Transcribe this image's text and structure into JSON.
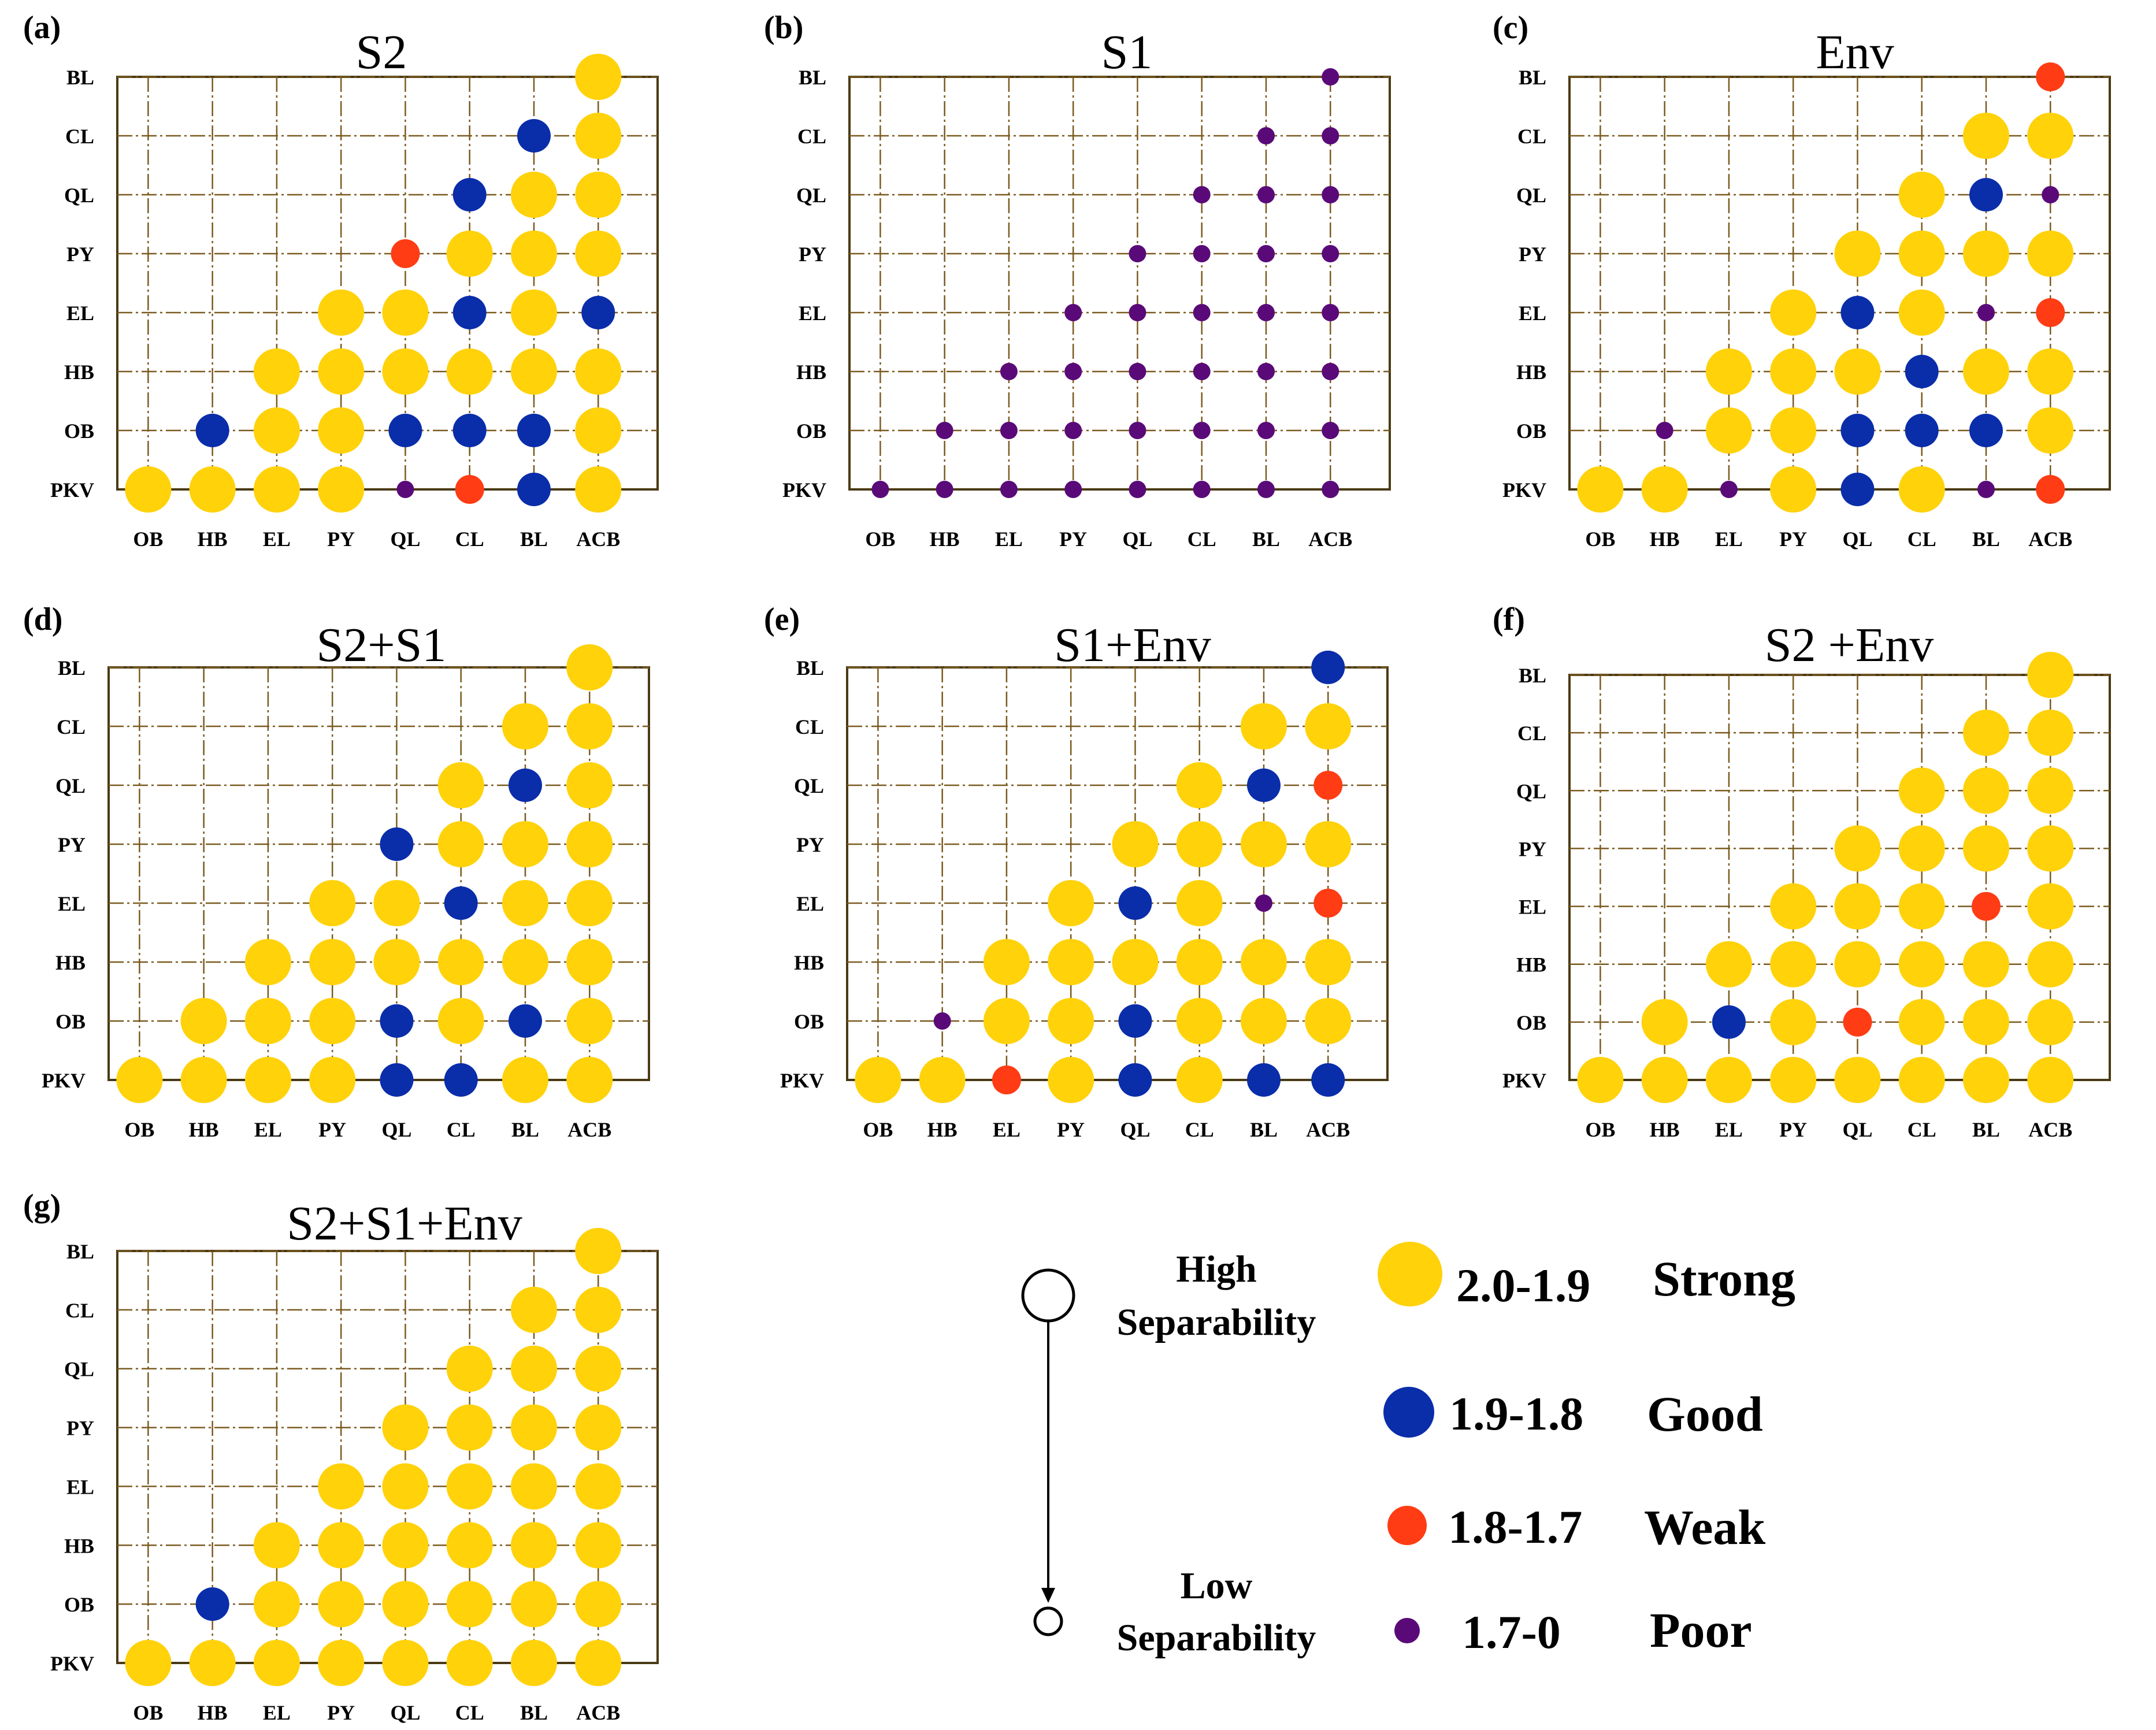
{
  "colors": {
    "strong": "#FFD20A",
    "good": "#0A2DAA",
    "weak": "#FF3C14",
    "poor": "#5A0A78",
    "grid": "#7A5A1E",
    "frame": "#4A3A14"
  },
  "chart_data": [
    {
      "type": "scatter",
      "panel": "(a)",
      "title": "S2",
      "x_categories": [
        "OB",
        "HB",
        "EL",
        "PY",
        "QL",
        "CL",
        "BL",
        "ACB"
      ],
      "y_categories": [
        "PKV",
        "OB",
        "HB",
        "EL",
        "PY",
        "QL",
        "CL",
        "BL"
      ],
      "classes": [
        [
          "strong",
          "strong",
          "strong",
          "strong",
          "poor",
          "weak",
          "good",
          "strong"
        ],
        [
          null,
          "good",
          "strong",
          "strong",
          "good",
          "good",
          "good",
          "strong"
        ],
        [
          null,
          null,
          "strong",
          "strong",
          "strong",
          "strong",
          "strong",
          "strong"
        ],
        [
          null,
          null,
          null,
          "strong",
          "strong",
          "good",
          "strong",
          "good"
        ],
        [
          null,
          null,
          null,
          null,
          "weak",
          "strong",
          "strong",
          "strong"
        ],
        [
          null,
          null,
          null,
          null,
          null,
          "good",
          "strong",
          "strong"
        ],
        [
          null,
          null,
          null,
          null,
          null,
          null,
          "good",
          "strong"
        ],
        [
          null,
          null,
          null,
          null,
          null,
          null,
          null,
          "strong"
        ]
      ]
    },
    {
      "type": "scatter",
      "panel": "(b)",
      "title": "S1",
      "x_categories": [
        "OB",
        "HB",
        "EL",
        "PY",
        "QL",
        "CL",
        "BL",
        "ACB"
      ],
      "y_categories": [
        "PKV",
        "OB",
        "HB",
        "EL",
        "PY",
        "QL",
        "CL",
        "BL"
      ],
      "classes": [
        [
          "poor",
          "poor",
          "poor",
          "poor",
          "poor",
          "poor",
          "poor",
          "poor"
        ],
        [
          null,
          "poor",
          "poor",
          "poor",
          "poor",
          "poor",
          "poor",
          "poor"
        ],
        [
          null,
          null,
          "poor",
          "poor",
          "poor",
          "poor",
          "poor",
          "poor"
        ],
        [
          null,
          null,
          null,
          "poor",
          "poor",
          "poor",
          "poor",
          "poor"
        ],
        [
          null,
          null,
          null,
          null,
          "poor",
          "poor",
          "poor",
          "poor"
        ],
        [
          null,
          null,
          null,
          null,
          null,
          "poor",
          "poor",
          "poor"
        ],
        [
          null,
          null,
          null,
          null,
          null,
          null,
          "poor",
          "poor"
        ],
        [
          null,
          null,
          null,
          null,
          null,
          null,
          null,
          "poor"
        ]
      ]
    },
    {
      "type": "scatter",
      "panel": "(c)",
      "title": "Env",
      "x_categories": [
        "OB",
        "HB",
        "EL",
        "PY",
        "QL",
        "CL",
        "BL",
        "ACB"
      ],
      "y_categories": [
        "PKV",
        "OB",
        "HB",
        "EL",
        "PY",
        "QL",
        "CL",
        "BL"
      ],
      "classes": [
        [
          "strong",
          "strong",
          "poor",
          "strong",
          "good",
          "strong",
          "poor",
          "weak"
        ],
        [
          null,
          "poor",
          "strong",
          "strong",
          "good",
          "good",
          "good",
          "strong"
        ],
        [
          null,
          null,
          "strong",
          "strong",
          "strong",
          "good",
          "strong",
          "strong"
        ],
        [
          null,
          null,
          null,
          "strong",
          "good",
          "strong",
          "poor",
          "weak"
        ],
        [
          null,
          null,
          null,
          null,
          "strong",
          "strong",
          "strong",
          "strong"
        ],
        [
          null,
          null,
          null,
          null,
          null,
          "strong",
          "good",
          "poor"
        ],
        [
          null,
          null,
          null,
          null,
          null,
          null,
          "strong",
          "strong"
        ],
        [
          null,
          null,
          null,
          null,
          null,
          null,
          null,
          "weak"
        ]
      ]
    },
    {
      "type": "scatter",
      "panel": "(d)",
      "title": "S2+S1",
      "x_categories": [
        "OB",
        "HB",
        "EL",
        "PY",
        "QL",
        "CL",
        "BL",
        "ACB"
      ],
      "y_categories": [
        "PKV",
        "OB",
        "HB",
        "EL",
        "PY",
        "QL",
        "CL",
        "BL"
      ],
      "classes": [
        [
          "strong",
          "strong",
          "strong",
          "strong",
          "good",
          "good",
          "strong",
          "strong"
        ],
        [
          null,
          "strong",
          "strong",
          "strong",
          "good",
          "strong",
          "good",
          "strong"
        ],
        [
          null,
          null,
          "strong",
          "strong",
          "strong",
          "strong",
          "strong",
          "strong"
        ],
        [
          null,
          null,
          null,
          "strong",
          "strong",
          "good",
          "strong",
          "strong"
        ],
        [
          null,
          null,
          null,
          null,
          "good",
          "strong",
          "strong",
          "strong"
        ],
        [
          null,
          null,
          null,
          null,
          null,
          "strong",
          "good",
          "strong"
        ],
        [
          null,
          null,
          null,
          null,
          null,
          null,
          "strong",
          "strong"
        ],
        [
          null,
          null,
          null,
          null,
          null,
          null,
          null,
          "strong"
        ]
      ]
    },
    {
      "type": "scatter",
      "panel": "(e)",
      "title": "S1+Env",
      "x_categories": [
        "OB",
        "HB",
        "EL",
        "PY",
        "QL",
        "CL",
        "BL",
        "ACB"
      ],
      "y_categories": [
        "PKV",
        "OB",
        "HB",
        "EL",
        "PY",
        "QL",
        "CL",
        "BL"
      ],
      "classes": [
        [
          "strong",
          "strong",
          "weak",
          "strong",
          "good",
          "strong",
          "good",
          "good"
        ],
        [
          null,
          "poor",
          "strong",
          "strong",
          "good",
          "strong",
          "strong",
          "strong"
        ],
        [
          null,
          null,
          "strong",
          "strong",
          "strong",
          "strong",
          "strong",
          "strong"
        ],
        [
          null,
          null,
          null,
          "strong",
          "good",
          "strong",
          "poor",
          "weak"
        ],
        [
          null,
          null,
          null,
          null,
          "strong",
          "strong",
          "strong",
          "strong"
        ],
        [
          null,
          null,
          null,
          null,
          null,
          "strong",
          "good",
          "weak"
        ],
        [
          null,
          null,
          null,
          null,
          null,
          null,
          "strong",
          "strong"
        ],
        [
          null,
          null,
          null,
          null,
          null,
          null,
          null,
          "good"
        ]
      ]
    },
    {
      "type": "scatter",
      "panel": "(f)",
      "title": "S2 +Env",
      "x_categories": [
        "OB",
        "HB",
        "EL",
        "PY",
        "QL",
        "CL",
        "BL",
        "ACB"
      ],
      "y_categories": [
        "PKV",
        "OB",
        "HB",
        "EL",
        "PY",
        "QL",
        "CL",
        "BL"
      ],
      "classes": [
        [
          "strong",
          "strong",
          "strong",
          "strong",
          "strong",
          "strong",
          "strong",
          "strong"
        ],
        [
          null,
          "strong",
          "good",
          "strong",
          "weak",
          "strong",
          "strong",
          "strong"
        ],
        [
          null,
          null,
          "strong",
          "strong",
          "strong",
          "strong",
          "strong",
          "strong"
        ],
        [
          null,
          null,
          null,
          "strong",
          "strong",
          "strong",
          "weak",
          "strong"
        ],
        [
          null,
          null,
          null,
          null,
          "strong",
          "strong",
          "strong",
          "strong"
        ],
        [
          null,
          null,
          null,
          null,
          null,
          "strong",
          "strong",
          "strong"
        ],
        [
          null,
          null,
          null,
          null,
          null,
          null,
          "strong",
          "strong"
        ],
        [
          null,
          null,
          null,
          null,
          null,
          null,
          null,
          "strong"
        ]
      ]
    },
    {
      "type": "scatter",
      "panel": "(g)",
      "title": "S2+S1+Env",
      "x_categories": [
        "OB",
        "HB",
        "EL",
        "PY",
        "QL",
        "CL",
        "BL",
        "ACB"
      ],
      "y_categories": [
        "PKV",
        "OB",
        "HB",
        "EL",
        "PY",
        "QL",
        "CL",
        "BL"
      ],
      "classes": [
        [
          "strong",
          "strong",
          "strong",
          "strong",
          "strong",
          "strong",
          "strong",
          "strong"
        ],
        [
          null,
          "good",
          "strong",
          "strong",
          "strong",
          "strong",
          "strong",
          "strong"
        ],
        [
          null,
          null,
          "strong",
          "strong",
          "strong",
          "strong",
          "strong",
          "strong"
        ],
        [
          null,
          null,
          null,
          "strong",
          "strong",
          "strong",
          "strong",
          "strong"
        ],
        [
          null,
          null,
          null,
          null,
          "strong",
          "strong",
          "strong",
          "strong"
        ],
        [
          null,
          null,
          null,
          null,
          null,
          "strong",
          "strong",
          "strong"
        ],
        [
          null,
          null,
          null,
          null,
          null,
          null,
          "strong",
          "strong"
        ],
        [
          null,
          null,
          null,
          null,
          null,
          null,
          null,
          "strong"
        ]
      ]
    }
  ],
  "legend": {
    "high_line1": "High",
    "high_line2": "Separability",
    "low_line1": "Low",
    "low_line2": "Separability",
    "items": [
      {
        "class": "strong",
        "range": "2.0-1.9",
        "label": "Strong"
      },
      {
        "class": "good",
        "range": "1.9-1.8",
        "label": "Good"
      },
      {
        "class": "weak",
        "range": "1.8-1.7",
        "label": "Weak"
      },
      {
        "class": "poor",
        "range": "1.7-0",
        "label": "Poor"
      }
    ]
  }
}
